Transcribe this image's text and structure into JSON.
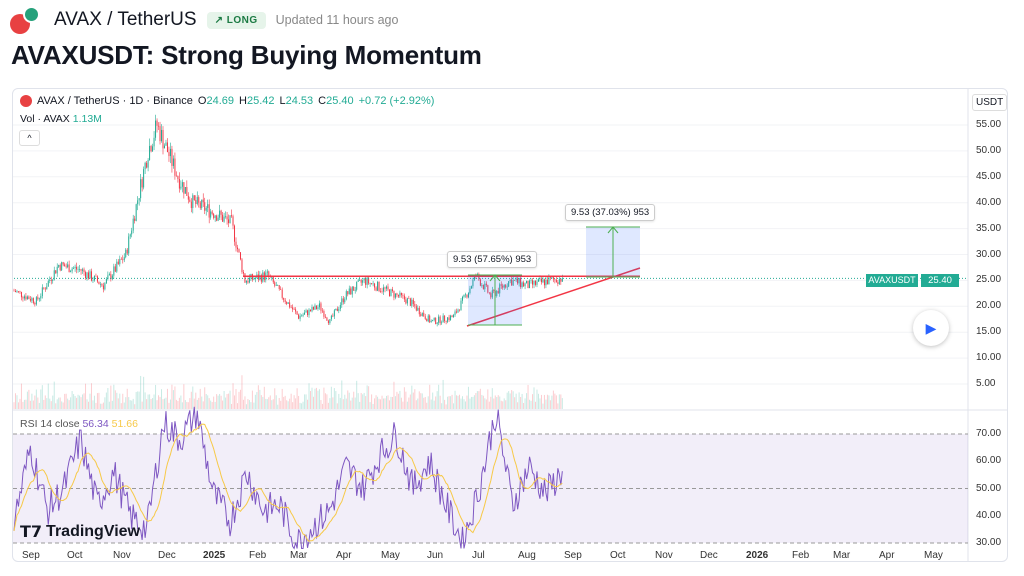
{
  "header": {
    "symbol": "AVAX / TetherUS",
    "badge": "LONG",
    "badge_icon": "arrow-up-right-icon",
    "updated": "Updated 11 hours ago",
    "title": "AVAXUSDT: Strong Buying Momentum"
  },
  "legend": {
    "symbol": "AVAX / TetherUS · 1D · Binance",
    "o_label": "O",
    "o": "24.69",
    "h_label": "H",
    "h": "25.42",
    "l_label": "L",
    "l": "24.53",
    "c_label": "C",
    "c": "25.40",
    "change": "+0.72 (+2.92%)",
    "vol_label": "Vol · AVAX",
    "vol": "1.13M",
    "collapse": "^"
  },
  "colors": {
    "up": "#22ab94",
    "down": "#f23645",
    "rsi": "#7e57c2",
    "rsi_ma": "#f7c948",
    "line": "#f23645",
    "measure_fill": "#2962ff"
  },
  "price_axis": {
    "currency": "USDT",
    "ticks": [
      "55.00",
      "50.00",
      "45.00",
      "40.00",
      "35.00",
      "30.00",
      "25.00",
      "20.00",
      "15.00",
      "10.00",
      "5.00"
    ],
    "last_label": "AVAXUSDT",
    "last_value": "25.40"
  },
  "rsi": {
    "label": "RSI 14 close",
    "value": "56.34",
    "ma": "51.66",
    "ticks": [
      "70.00",
      "60.00",
      "50.00",
      "40.00",
      "30.00"
    ]
  },
  "time_axis": [
    "Sep",
    "Oct",
    "Nov",
    "Dec",
    "2025",
    "Feb",
    "Mar",
    "Apr",
    "May",
    "Jun",
    "Jul",
    "Aug",
    "Sep",
    "Oct",
    "Nov",
    "Dec",
    "2026",
    "Feb",
    "Mar",
    "Apr",
    "May"
  ],
  "measurements": [
    {
      "label": "9.53 (57.65%) 953"
    },
    {
      "label": "9.53 (37.03%) 953"
    }
  ],
  "brand": "TradingView",
  "chart_data": {
    "type": "candlestick",
    "price_path_days": [
      0,
      15,
      30,
      45,
      60,
      75,
      90,
      96,
      110,
      120,
      135,
      146,
      155,
      170,
      180,
      191,
      205,
      212,
      222,
      235,
      250,
      265,
      280,
      295,
      305,
      310,
      320,
      333,
      345,
      360,
      368
    ],
    "price_path": [
      23,
      21,
      28,
      27,
      24,
      30,
      50,
      55,
      45,
      40,
      38,
      36,
      25,
      26,
      22,
      18,
      20,
      17,
      22,
      25,
      23,
      21,
      17,
      18,
      23,
      26,
      22,
      25,
      24,
      25,
      25.4
    ],
    "rsi_path": [
      38,
      65,
      42,
      50,
      68,
      44,
      56,
      40,
      35,
      74,
      68,
      78,
      48,
      38,
      56,
      42,
      44,
      30,
      36,
      42,
      58,
      50,
      62,
      70,
      50,
      60,
      44,
      30,
      50,
      78,
      44,
      58,
      48,
      56.34
    ],
    "annotations": {
      "resistance": 25.8
    }
  }
}
